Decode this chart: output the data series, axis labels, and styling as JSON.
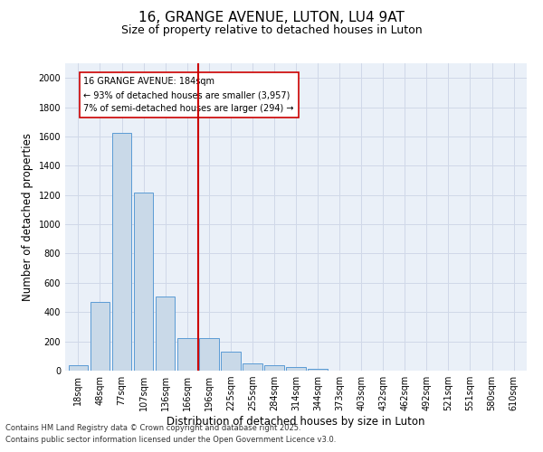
{
  "title": "16, GRANGE AVENUE, LUTON, LU4 9AT",
  "subtitle": "Size of property relative to detached houses in Luton",
  "xlabel": "Distribution of detached houses by size in Luton",
  "ylabel": "Number of detached properties",
  "categories": [
    "18sqm",
    "48sqm",
    "77sqm",
    "107sqm",
    "136sqm",
    "166sqm",
    "196sqm",
    "225sqm",
    "255sqm",
    "284sqm",
    "314sqm",
    "344sqm",
    "373sqm",
    "403sqm",
    "432sqm",
    "462sqm",
    "492sqm",
    "521sqm",
    "551sqm",
    "580sqm",
    "610sqm"
  ],
  "values": [
    35,
    470,
    1625,
    1215,
    505,
    225,
    220,
    130,
    50,
    35,
    25,
    15,
    0,
    0,
    0,
    0,
    0,
    0,
    0,
    0,
    0
  ],
  "bar_color": "#c9d9e8",
  "bar_edge_color": "#5b9bd5",
  "vline_color": "#cc0000",
  "vline_x_index": 6,
  "annotation_text": "16 GRANGE AVENUE: 184sqm\n← 93% of detached houses are smaller (3,957)\n7% of semi-detached houses are larger (294) →",
  "annotation_box_color": "#cc0000",
  "ylim": [
    0,
    2100
  ],
  "yticks": [
    0,
    200,
    400,
    600,
    800,
    1000,
    1200,
    1400,
    1600,
    1800,
    2000
  ],
  "grid_color": "#d0d8e8",
  "background_color": "#eaf0f8",
  "footer_line1": "Contains HM Land Registry data © Crown copyright and database right 2025.",
  "footer_line2": "Contains public sector information licensed under the Open Government Licence v3.0.",
  "title_fontsize": 11,
  "subtitle_fontsize": 9,
  "xlabel_fontsize": 8.5,
  "ylabel_fontsize": 8.5,
  "tick_fontsize": 7,
  "annotation_fontsize": 7,
  "footer_fontsize": 6
}
